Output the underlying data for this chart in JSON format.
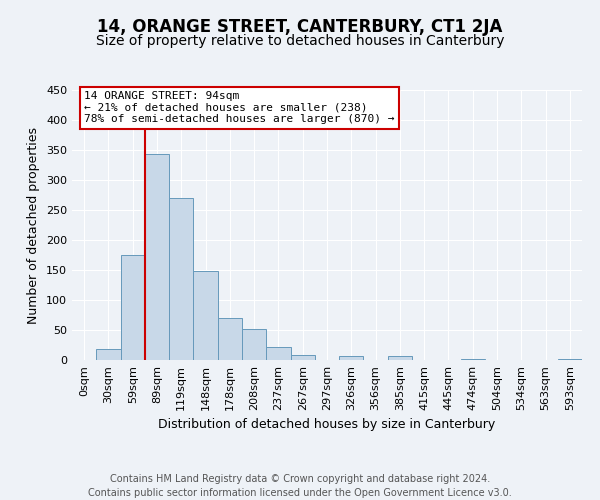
{
  "title": "14, ORANGE STREET, CANTERBURY, CT1 2JA",
  "subtitle": "Size of property relative to detached houses in Canterbury",
  "xlabel": "Distribution of detached houses by size in Canterbury",
  "ylabel": "Number of detached properties",
  "bar_labels": [
    "0sqm",
    "30sqm",
    "59sqm",
    "89sqm",
    "119sqm",
    "148sqm",
    "178sqm",
    "208sqm",
    "237sqm",
    "267sqm",
    "297sqm",
    "326sqm",
    "356sqm",
    "385sqm",
    "415sqm",
    "445sqm",
    "474sqm",
    "504sqm",
    "534sqm",
    "563sqm",
    "593sqm"
  ],
  "bar_values": [
    0,
    18,
    175,
    343,
    270,
    148,
    70,
    52,
    22,
    8,
    0,
    6,
    0,
    7,
    0,
    0,
    1,
    0,
    0,
    0,
    1
  ],
  "bar_color": "#c8d8e8",
  "bar_edge_color": "#6699bb",
  "ylim": [
    0,
    450
  ],
  "yticks": [
    0,
    50,
    100,
    150,
    200,
    250,
    300,
    350,
    400,
    450
  ],
  "redline_x": 3,
  "annotation_title": "14 ORANGE STREET: 94sqm",
  "annotation_line1": "← 21% of detached houses are smaller (238)",
  "annotation_line2": "78% of semi-detached houses are larger (870) →",
  "annotation_box_color": "#ffffff",
  "annotation_box_edge": "#cc0000",
  "redline_color": "#cc0000",
  "footer_line1": "Contains HM Land Registry data © Crown copyright and database right 2024.",
  "footer_line2": "Contains public sector information licensed under the Open Government Licence v3.0.",
  "background_color": "#eef2f7",
  "grid_color": "#ffffff",
  "title_fontsize": 12,
  "subtitle_fontsize": 10,
  "xlabel_fontsize": 9,
  "ylabel_fontsize": 9,
  "tick_fontsize": 8,
  "footer_fontsize": 7
}
